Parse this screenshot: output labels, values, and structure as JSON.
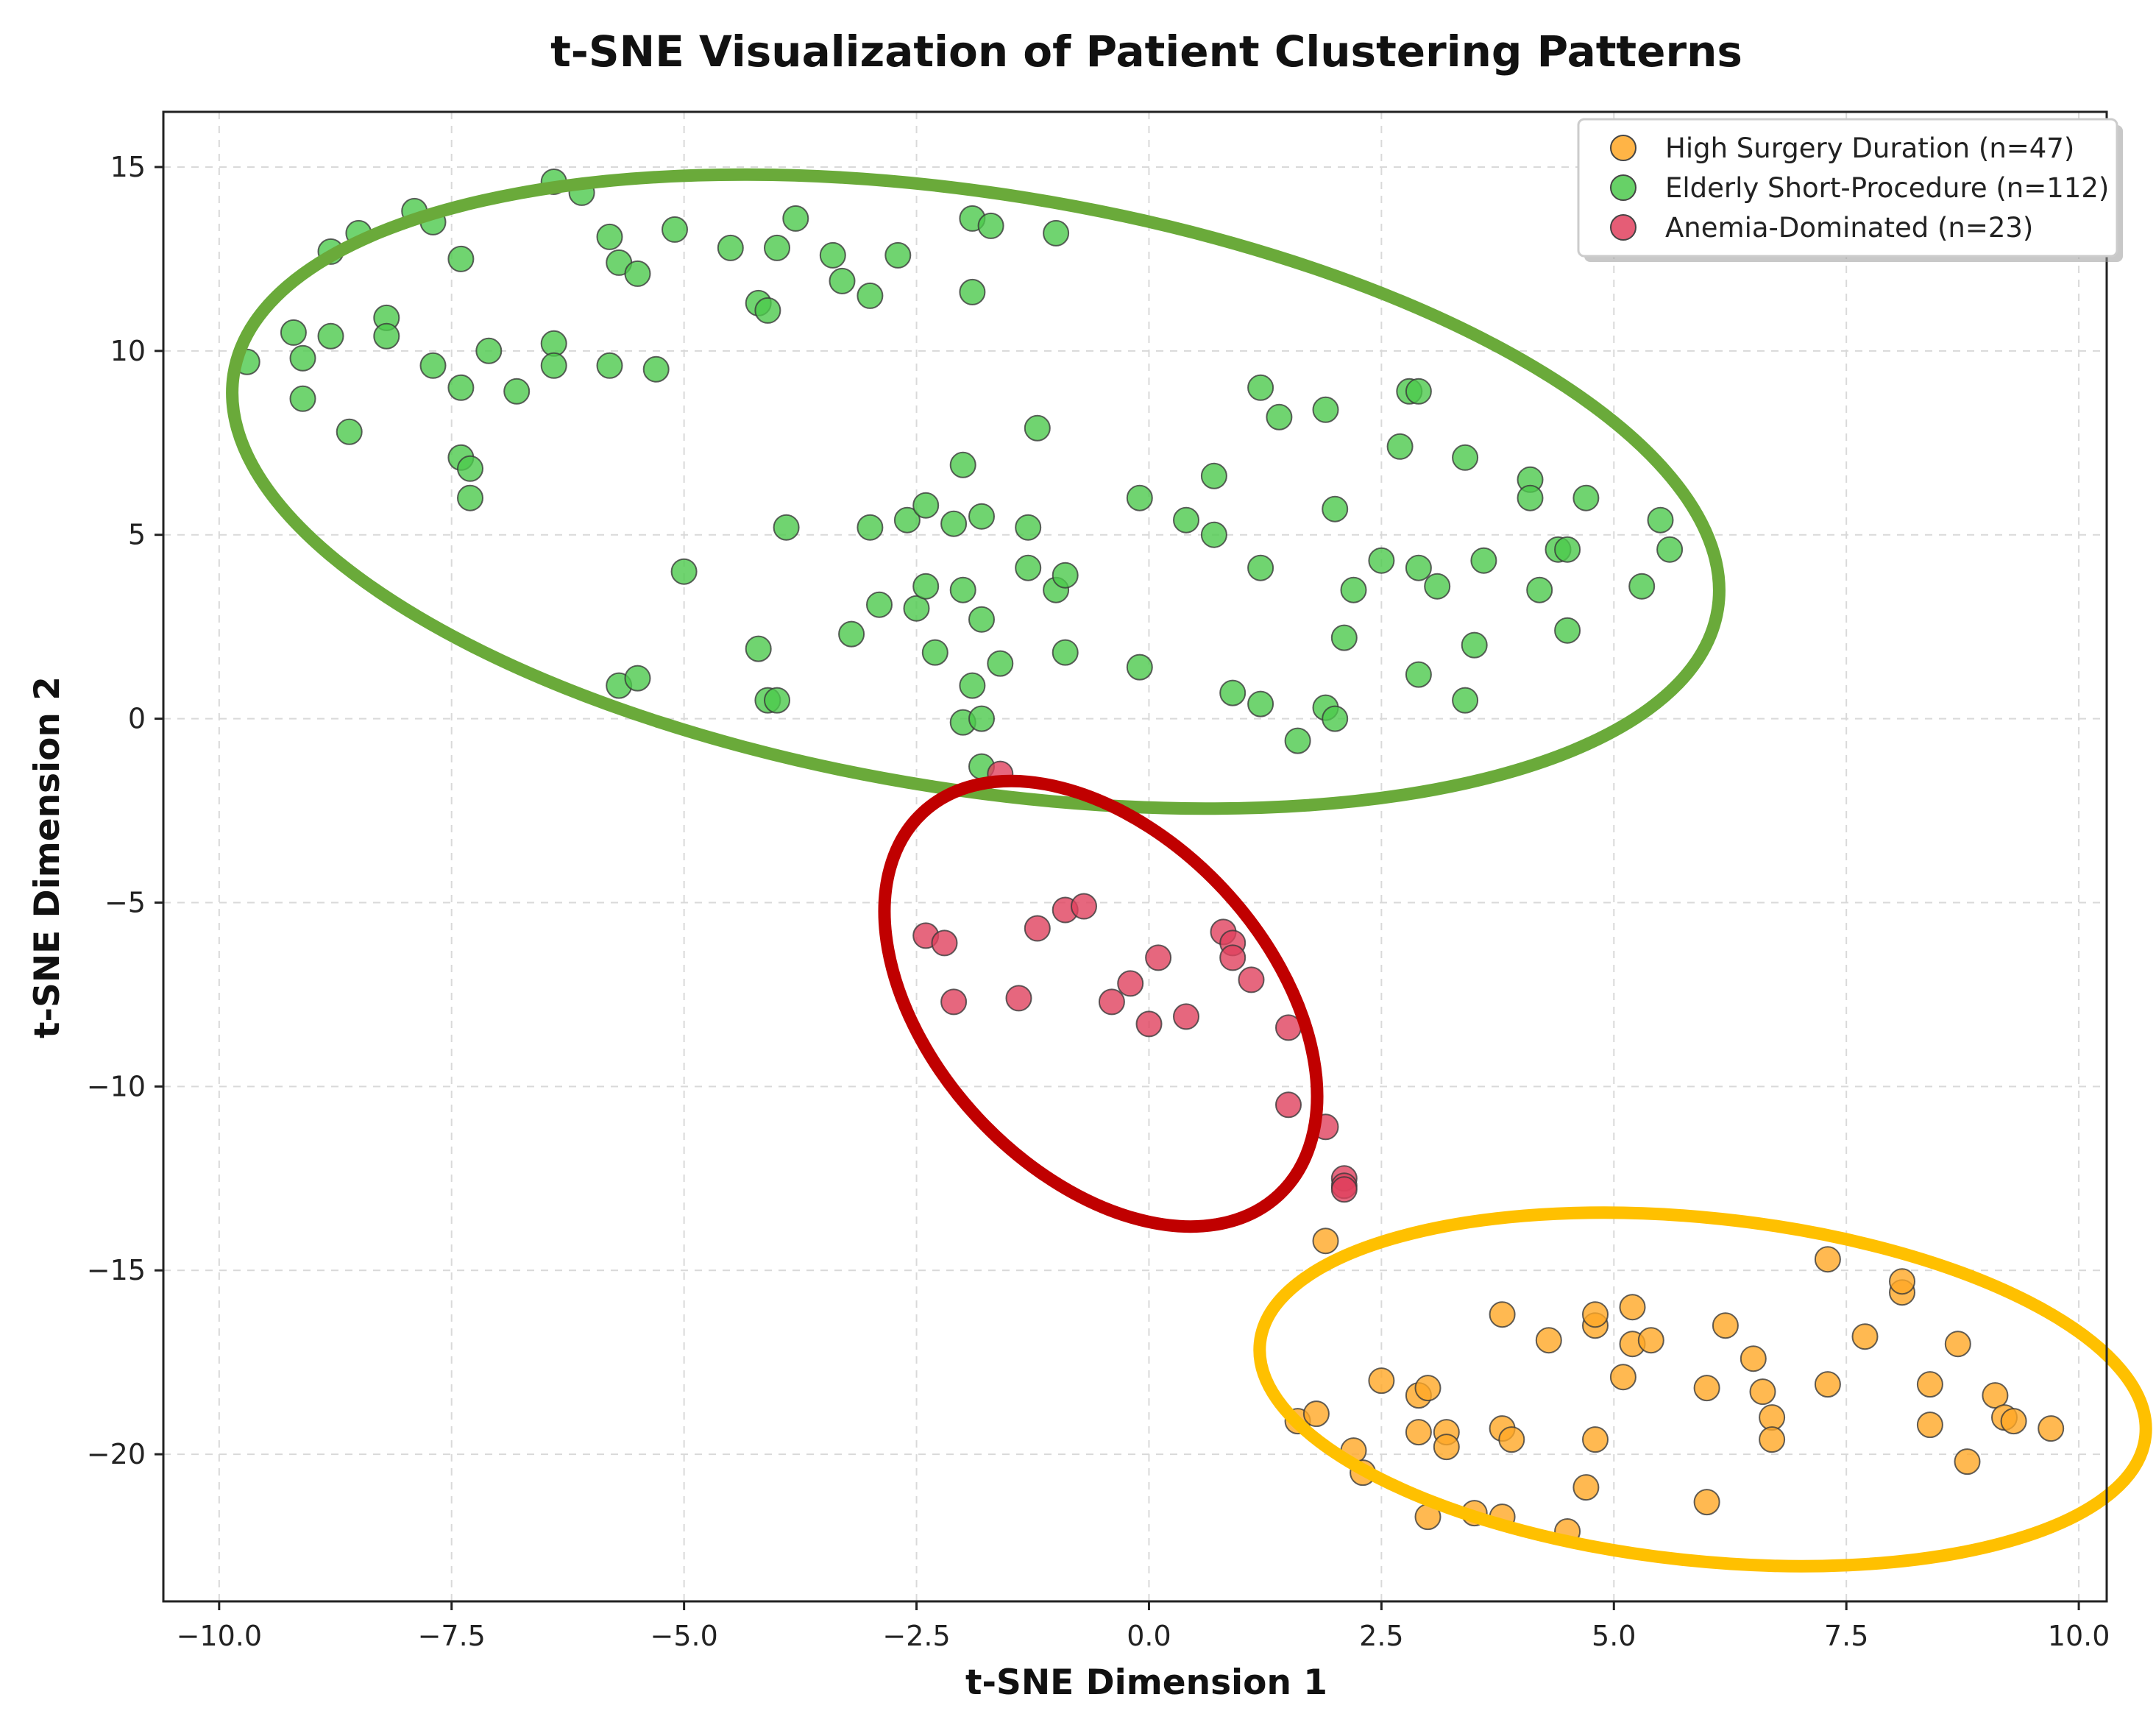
{
  "chart_data": {
    "type": "scatter",
    "title": "t-SNE Visualization of Patient Clustering Patterns",
    "xlabel": "t-SNE Dimension 1",
    "ylabel": "t-SNE Dimension 2",
    "xlim": [
      -10.6,
      10.3
    ],
    "ylim": [
      -24.0,
      16.5
    ],
    "xticks": [
      -10.0,
      -7.5,
      -5.0,
      -2.5,
      0.0,
      2.5,
      5.0,
      7.5,
      10.0
    ],
    "xtick_labels": [
      "−10.0",
      "−7.5",
      "−5.0",
      "−2.5",
      "0.0",
      "2.5",
      "5.0",
      "7.5",
      "10.0"
    ],
    "yticks": [
      15,
      10,
      5,
      0,
      -5,
      -10,
      -15,
      -20
    ],
    "ytick_labels": [
      "15",
      "10",
      "5",
      "0",
      "−5",
      "−10",
      "−15",
      "−20"
    ],
    "grid": true,
    "legend_position": "top-right",
    "series": [
      {
        "name": "High Surgery Duration (n=47)",
        "color": "#ffa726",
        "points": [
          [
            1.9,
            -14.2
          ],
          [
            1.6,
            -19.1
          ],
          [
            1.8,
            -18.9
          ],
          [
            2.2,
            -19.9
          ],
          [
            2.3,
            -20.5
          ],
          [
            2.5,
            -18.0
          ],
          [
            2.9,
            -18.4
          ],
          [
            3.0,
            -18.2
          ],
          [
            2.9,
            -19.4
          ],
          [
            3.2,
            -19.4
          ],
          [
            3.2,
            -19.8
          ],
          [
            3.0,
            -21.7
          ],
          [
            3.5,
            -21.6
          ],
          [
            3.8,
            -16.2
          ],
          [
            3.8,
            -19.3
          ],
          [
            3.9,
            -19.6
          ],
          [
            3.8,
            -21.7
          ],
          [
            4.3,
            -16.9
          ],
          [
            4.5,
            -22.1
          ],
          [
            4.7,
            -20.9
          ],
          [
            4.8,
            -16.5
          ],
          [
            4.8,
            -16.2
          ],
          [
            4.8,
            -19.6
          ],
          [
            5.1,
            -17.9
          ],
          [
            5.2,
            -17.0
          ],
          [
            5.2,
            -16.0
          ],
          [
            5.4,
            -16.9
          ],
          [
            6.0,
            -18.2
          ],
          [
            6.0,
            -21.3
          ],
          [
            6.2,
            -16.5
          ],
          [
            6.5,
            -17.4
          ],
          [
            6.6,
            -18.3
          ],
          [
            6.7,
            -19.0
          ],
          [
            6.7,
            -19.6
          ],
          [
            7.3,
            -14.7
          ],
          [
            7.3,
            -18.1
          ],
          [
            7.7,
            -16.8
          ],
          [
            8.1,
            -15.6
          ],
          [
            8.1,
            -15.3
          ],
          [
            8.4,
            -18.1
          ],
          [
            8.4,
            -19.2
          ],
          [
            8.7,
            -17.0
          ],
          [
            8.8,
            -20.2
          ],
          [
            9.1,
            -18.4
          ],
          [
            9.2,
            -19.0
          ],
          [
            9.3,
            -19.1
          ],
          [
            9.7,
            -19.3
          ]
        ]
      },
      {
        "name": "Elderly Short-Procedure (n=112)",
        "color": "#4cc94c",
        "points": [
          [
            -9.7,
            9.7
          ],
          [
            -9.2,
            10.5
          ],
          [
            -9.1,
            9.8
          ],
          [
            -9.1,
            8.7
          ],
          [
            -8.8,
            12.7
          ],
          [
            -8.8,
            10.4
          ],
          [
            -8.5,
            13.2
          ],
          [
            -8.6,
            7.8
          ],
          [
            -8.2,
            10.9
          ],
          [
            -8.2,
            10.4
          ],
          [
            -7.9,
            13.8
          ],
          [
            -7.7,
            13.5
          ],
          [
            -7.7,
            9.6
          ],
          [
            -7.4,
            12.5
          ],
          [
            -7.4,
            9.0
          ],
          [
            -7.4,
            7.1
          ],
          [
            -7.3,
            6.8
          ],
          [
            -7.3,
            6.0
          ],
          [
            -7.1,
            10.0
          ],
          [
            -6.8,
            8.9
          ],
          [
            -6.4,
            14.6
          ],
          [
            -6.4,
            10.2
          ],
          [
            -6.4,
            9.6
          ],
          [
            -6.1,
            14.3
          ],
          [
            -5.8,
            13.1
          ],
          [
            -5.8,
            9.6
          ],
          [
            -5.7,
            12.4
          ],
          [
            -5.5,
            12.1
          ],
          [
            -5.3,
            9.5
          ],
          [
            -5.1,
            13.3
          ],
          [
            -5.0,
            4.0
          ],
          [
            -5.7,
            0.9
          ],
          [
            -5.5,
            1.1
          ],
          [
            -4.5,
            12.8
          ],
          [
            -4.2,
            11.3
          ],
          [
            -4.1,
            11.1
          ],
          [
            -4.0,
            12.8
          ],
          [
            -3.9,
            5.2
          ],
          [
            -3.8,
            13.6
          ],
          [
            -3.4,
            12.6
          ],
          [
            -3.3,
            11.9
          ],
          [
            -3.0,
            11.5
          ],
          [
            -3.0,
            5.2
          ],
          [
            -2.9,
            3.1
          ],
          [
            -3.2,
            2.3
          ],
          [
            -2.7,
            12.6
          ],
          [
            -2.6,
            5.4
          ],
          [
            -2.5,
            3.0
          ],
          [
            -2.4,
            5.8
          ],
          [
            -2.4,
            3.6
          ],
          [
            -2.3,
            1.8
          ],
          [
            -4.2,
            1.9
          ],
          [
            -4.1,
            0.5
          ],
          [
            -4.0,
            0.5
          ],
          [
            -2.0,
            3.5
          ],
          [
            -2.0,
            6.9
          ],
          [
            -1.9,
            13.6
          ],
          [
            -1.9,
            11.6
          ],
          [
            -1.8,
            5.5
          ],
          [
            -1.8,
            2.7
          ],
          [
            -1.7,
            13.4
          ],
          [
            -1.6,
            1.5
          ],
          [
            -2.1,
            5.3
          ],
          [
            -1.9,
            0.9
          ],
          [
            -2.0,
            -0.1
          ],
          [
            -1.8,
            0.0
          ],
          [
            -1.8,
            -1.3
          ],
          [
            -1.3,
            5.2
          ],
          [
            -1.3,
            4.1
          ],
          [
            -1.2,
            7.9
          ],
          [
            -1.0,
            13.2
          ],
          [
            -1.0,
            3.5
          ],
          [
            -0.9,
            3.9
          ],
          [
            -0.9,
            1.8
          ],
          [
            -0.1,
            6.0
          ],
          [
            -0.1,
            1.4
          ],
          [
            0.4,
            5.4
          ],
          [
            0.7,
            6.6
          ],
          [
            0.7,
            5.0
          ],
          [
            0.9,
            0.7
          ],
          [
            1.2,
            9.0
          ],
          [
            1.2,
            4.1
          ],
          [
            1.2,
            0.4
          ],
          [
            1.4,
            8.2
          ],
          [
            1.6,
            -0.6
          ],
          [
            1.9,
            8.4
          ],
          [
            1.9,
            0.3
          ],
          [
            2.0,
            5.7
          ],
          [
            2.0,
            0.0
          ],
          [
            2.1,
            2.2
          ],
          [
            2.2,
            3.5
          ],
          [
            2.5,
            4.3
          ],
          [
            2.7,
            7.4
          ],
          [
            2.8,
            8.9
          ],
          [
            2.9,
            8.9
          ],
          [
            2.9,
            4.1
          ],
          [
            2.9,
            1.2
          ],
          [
            3.1,
            3.6
          ],
          [
            3.4,
            7.1
          ],
          [
            3.4,
            0.5
          ],
          [
            3.5,
            2.0
          ],
          [
            3.6,
            4.3
          ],
          [
            4.1,
            6.5
          ],
          [
            4.1,
            6.0
          ],
          [
            4.2,
            3.5
          ],
          [
            4.4,
            4.6
          ],
          [
            4.5,
            4.6
          ],
          [
            4.5,
            2.4
          ],
          [
            4.7,
            6.0
          ],
          [
            5.3,
            3.6
          ],
          [
            5.5,
            5.4
          ],
          [
            5.6,
            4.6
          ]
        ]
      },
      {
        "name": "Anemia-Dominated (n=23)",
        "color": "#e0415e",
        "points": [
          [
            -1.6,
            -1.5
          ],
          [
            -2.4,
            -5.9
          ],
          [
            -2.2,
            -6.1
          ],
          [
            -2.1,
            -7.7
          ],
          [
            -1.4,
            -7.6
          ],
          [
            -1.2,
            -5.7
          ],
          [
            -0.9,
            -5.2
          ],
          [
            -0.7,
            -5.1
          ],
          [
            -0.4,
            -7.7
          ],
          [
            -0.2,
            -7.2
          ],
          [
            0.0,
            -8.3
          ],
          [
            0.1,
            -6.5
          ],
          [
            0.4,
            -8.1
          ],
          [
            0.8,
            -5.8
          ],
          [
            0.9,
            -6.1
          ],
          [
            0.9,
            -6.5
          ],
          [
            1.1,
            -7.1
          ],
          [
            1.5,
            -8.4
          ],
          [
            1.5,
            -10.5
          ],
          [
            1.9,
            -11.1
          ],
          [
            2.1,
            -12.5
          ],
          [
            2.1,
            -12.7
          ],
          [
            2.1,
            -12.8
          ]
        ]
      }
    ],
    "annotations": [
      {
        "shape": "ellipse",
        "color": "#6aaa3a",
        "encloses": "Elderly Short-Procedure (n=112)"
      },
      {
        "shape": "ellipse",
        "color": "#c00000",
        "encloses": "Anemia-Dominated (n=23)"
      },
      {
        "shape": "ellipse",
        "color": "#ffc000",
        "encloses": "High Surgery Duration (n=47)"
      }
    ]
  }
}
